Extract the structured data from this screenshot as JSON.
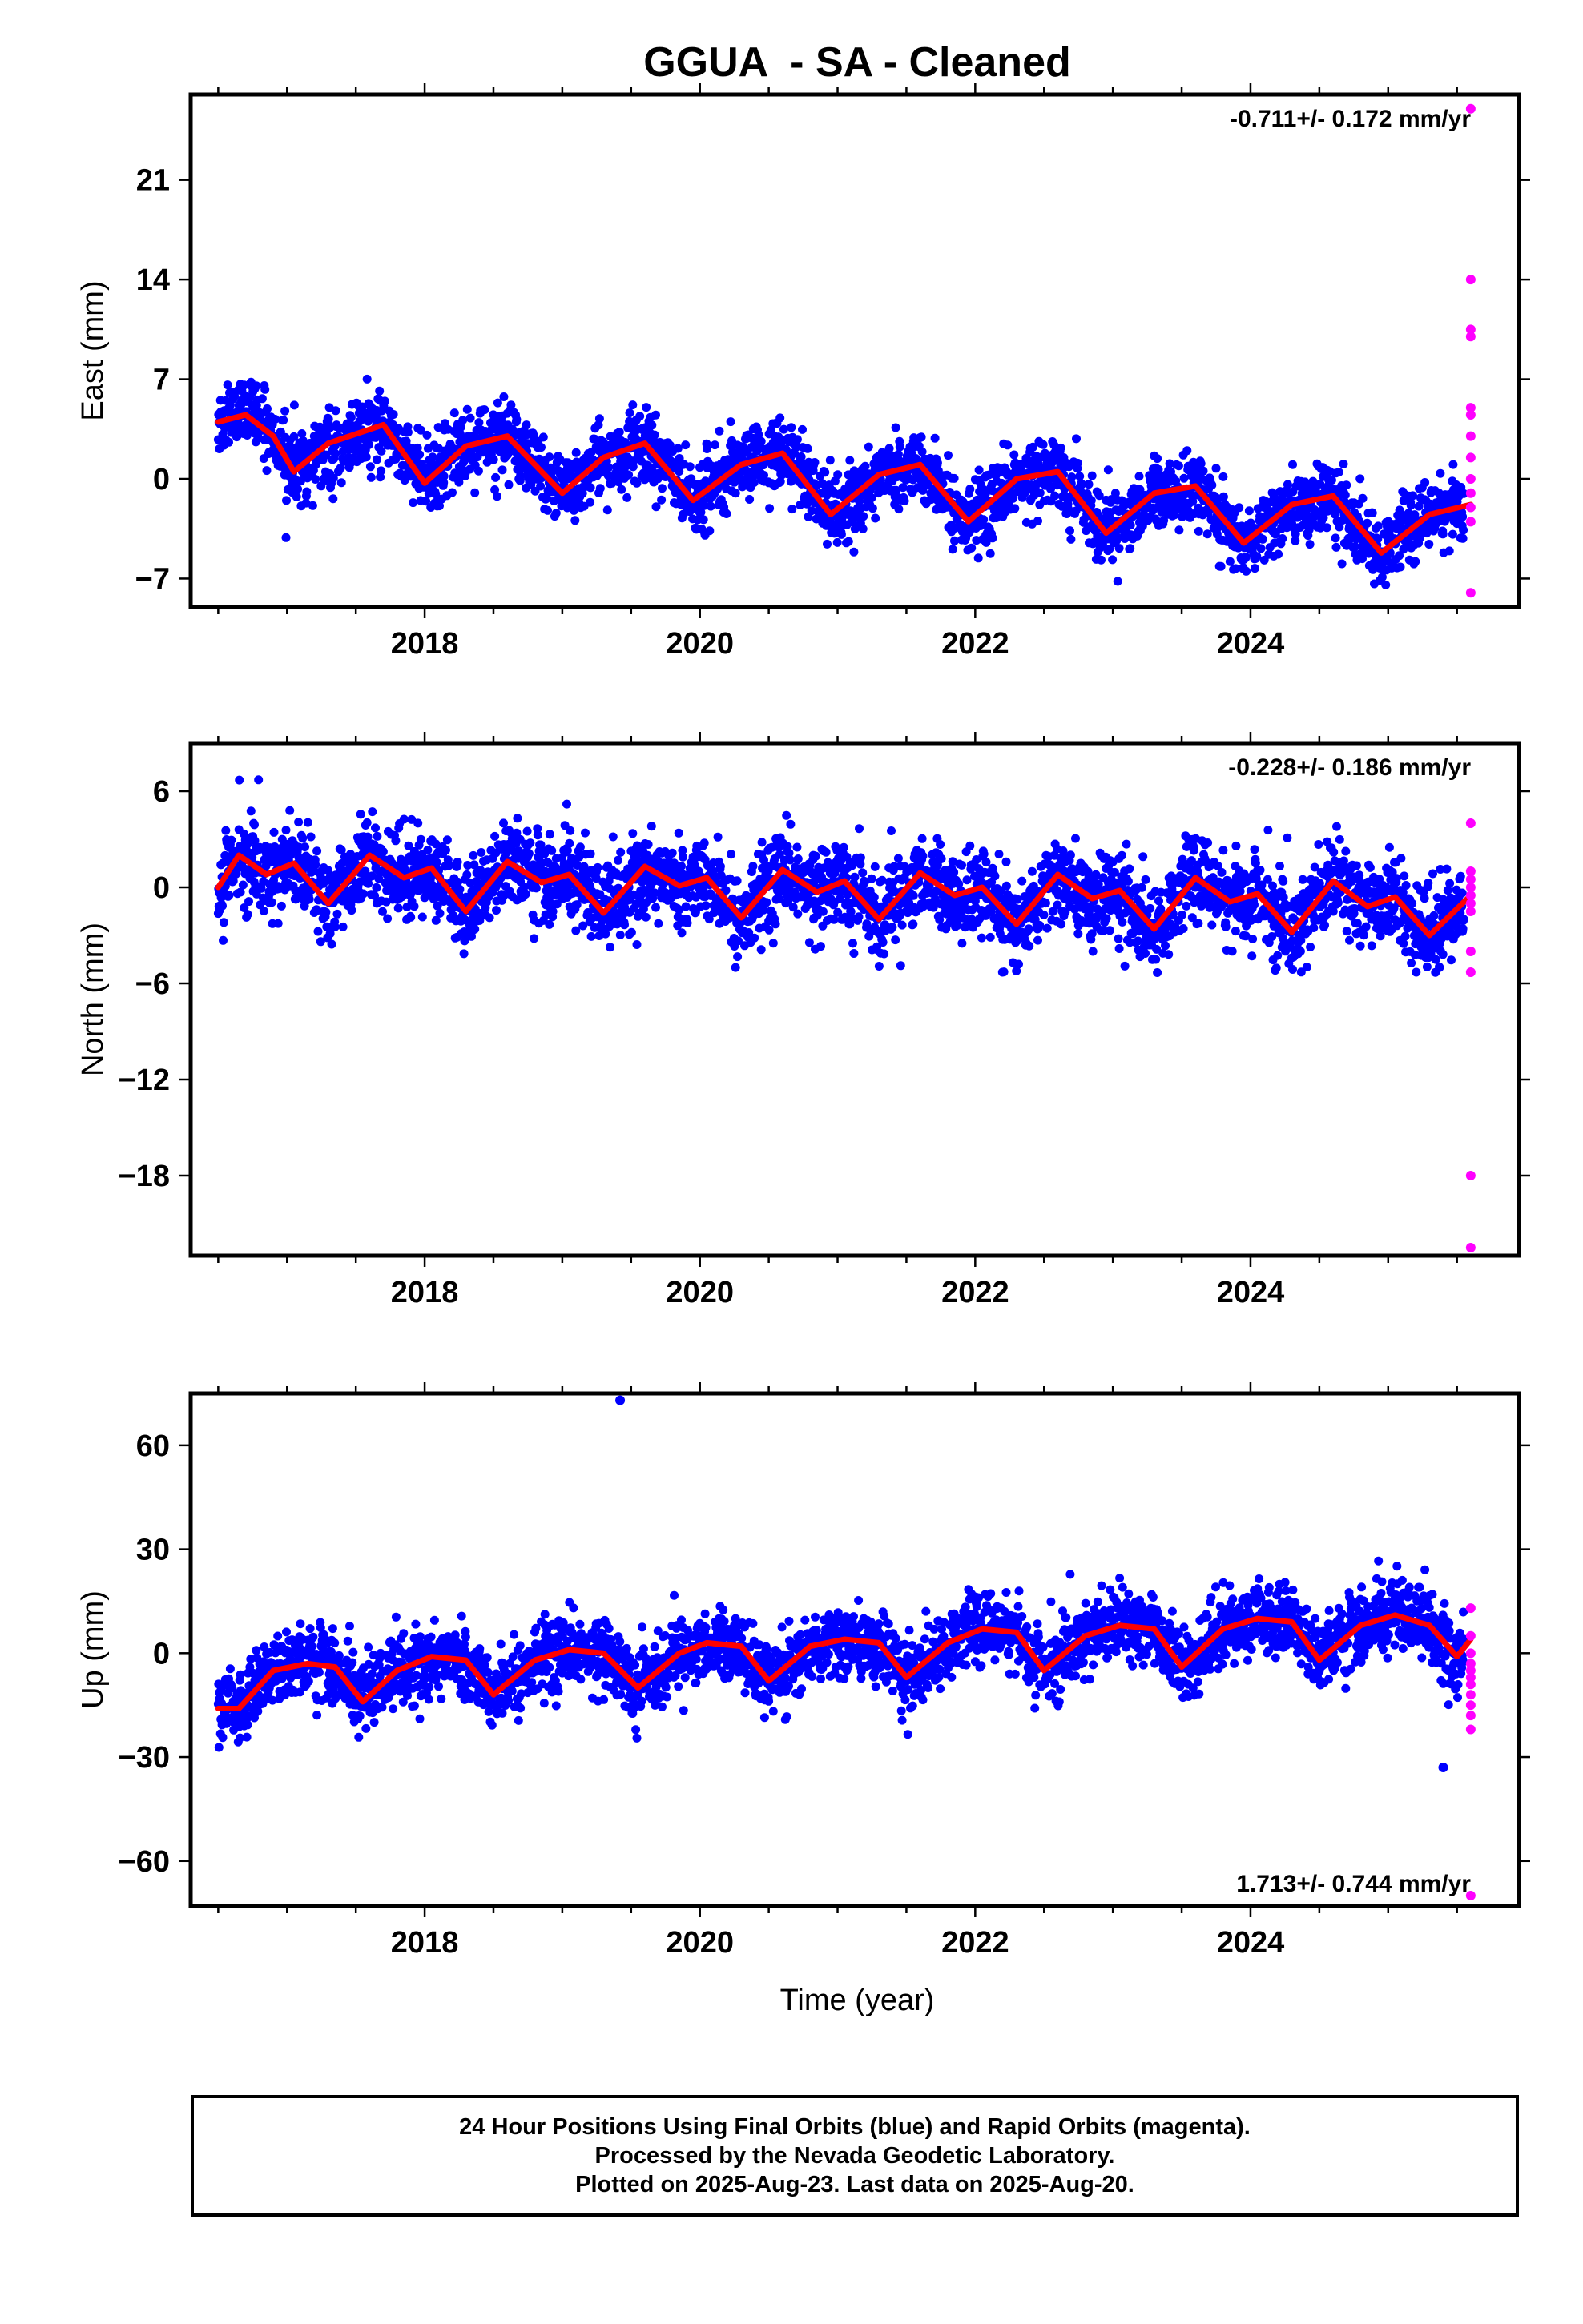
{
  "title": "GGUA  - SA - Cleaned",
  "colors": {
    "final": "#0000ff",
    "rapid": "#ff00ff",
    "model": "#ff0000",
    "frame": "#000000"
  },
  "xlabel": "Time (year)",
  "footer": {
    "line1": "24 Hour Positions Using Final Orbits (blue) and Rapid Orbits (magenta).",
    "line2": "Processed by the Nevada Geodetic Laboratory.",
    "line3": "Plotted on 2025-Aug-23. Last data on 2025-Aug-20."
  },
  "chart_data": [
    {
      "type": "scatter",
      "name": "east",
      "ylabel": "East (mm)",
      "xlim": [
        2016.3,
        2025.95
      ],
      "ylim": [
        -9,
        27
      ],
      "xticks": [
        2018,
        2020,
        2022,
        2024
      ],
      "yticks": [
        -7,
        0,
        7,
        14,
        21
      ],
      "annotation": "-0.711+/- 0.172 mm/yr",
      "annotation_pos": "top-right",
      "series": [
        {
          "role": "final-orbits",
          "x_range": [
            2016.5,
            2025.55
          ],
          "trend_mm_per_yr": -0.711,
          "trend_sigma": 0.172,
          "scatter_mm": 1.2
        },
        {
          "role": "rapid-orbits",
          "points": [
            [
              2025.6,
              26
            ],
            [
              2025.6,
              14
            ],
            [
              2025.6,
              10.5
            ],
            [
              2025.6,
              10
            ],
            [
              2025.6,
              5
            ],
            [
              2025.6,
              4.5
            ],
            [
              2025.6,
              3
            ],
            [
              2025.6,
              1.5
            ],
            [
              2025.6,
              0
            ],
            [
              2025.6,
              -1
            ],
            [
              2025.6,
              -2
            ],
            [
              2025.6,
              -3
            ],
            [
              2025.6,
              -8
            ]
          ]
        },
        {
          "role": "model",
          "points": [
            [
              2016.5,
              4
            ],
            [
              2016.7,
              4.5
            ],
            [
              2016.9,
              3
            ],
            [
              2017.05,
              0.5
            ],
            [
              2017.3,
              2.5
            ],
            [
              2017.7,
              3.8
            ],
            [
              2018.0,
              -0.3
            ],
            [
              2018.3,
              2.3
            ],
            [
              2018.6,
              3.0
            ],
            [
              2019.0,
              -1.0
            ],
            [
              2019.3,
              1.5
            ],
            [
              2019.6,
              2.5
            ],
            [
              2019.95,
              -1.5
            ],
            [
              2020.3,
              1.0
            ],
            [
              2020.6,
              1.8
            ],
            [
              2020.95,
              -2.5
            ],
            [
              2021.3,
              0.3
            ],
            [
              2021.6,
              1.0
            ],
            [
              2021.95,
              -3.0
            ],
            [
              2022.3,
              0.0
            ],
            [
              2022.6,
              0.5
            ],
            [
              2022.95,
              -3.8
            ],
            [
              2023.3,
              -1.0
            ],
            [
              2023.6,
              -0.5
            ],
            [
              2023.95,
              -4.5
            ],
            [
              2024.3,
              -1.8
            ],
            [
              2024.6,
              -1.2
            ],
            [
              2024.95,
              -5.2
            ],
            [
              2025.3,
              -2.5
            ],
            [
              2025.6,
              -1.8
            ]
          ]
        }
      ]
    },
    {
      "type": "scatter",
      "name": "north",
      "ylabel": "North (mm)",
      "xlim": [
        2016.3,
        2025.95
      ],
      "ylim": [
        -23,
        9
      ],
      "xticks": [
        2018,
        2020,
        2022,
        2024
      ],
      "yticks": [
        -18,
        -12,
        -6,
        0,
        6
      ],
      "annotation": "-0.228+/- 0.186 mm/yr",
      "annotation_pos": "top-right",
      "series": [
        {
          "role": "final-orbits",
          "x_range": [
            2016.5,
            2025.55
          ],
          "trend_mm_per_yr": -0.228,
          "trend_sigma": 0.186,
          "scatter_mm": 1.3
        },
        {
          "role": "rapid-orbits",
          "points": [
            [
              2025.6,
              4
            ],
            [
              2025.6,
              1
            ],
            [
              2025.6,
              0.5
            ],
            [
              2025.6,
              0
            ],
            [
              2025.6,
              -0.5
            ],
            [
              2025.6,
              -1
            ],
            [
              2025.6,
              -1.5
            ],
            [
              2025.6,
              -4
            ],
            [
              2025.6,
              -5.3
            ],
            [
              2025.6,
              -18
            ],
            [
              2025.6,
              -22.5
            ]
          ]
        },
        {
          "role": "model",
          "points": [
            [
              2016.5,
              0
            ],
            [
              2016.65,
              2.0
            ],
            [
              2016.85,
              0.8
            ],
            [
              2017.05,
              1.5
            ],
            [
              2017.3,
              -1.0
            ],
            [
              2017.6,
              2.0
            ],
            [
              2017.85,
              0.6
            ],
            [
              2018.05,
              1.2
            ],
            [
              2018.3,
              -1.5
            ],
            [
              2018.6,
              1.6
            ],
            [
              2018.85,
              0.3
            ],
            [
              2019.05,
              0.8
            ],
            [
              2019.3,
              -1.6
            ],
            [
              2019.6,
              1.3
            ],
            [
              2019.85,
              0.1
            ],
            [
              2020.05,
              0.6
            ],
            [
              2020.3,
              -1.9
            ],
            [
              2020.6,
              1.1
            ],
            [
              2020.85,
              -0.3
            ],
            [
              2021.05,
              0.4
            ],
            [
              2021.3,
              -2.0
            ],
            [
              2021.6,
              0.9
            ],
            [
              2021.85,
              -0.5
            ],
            [
              2022.05,
              0.0
            ],
            [
              2022.3,
              -2.3
            ],
            [
              2022.6,
              0.8
            ],
            [
              2022.85,
              -0.7
            ],
            [
              2023.05,
              -0.2
            ],
            [
              2023.3,
              -2.6
            ],
            [
              2023.6,
              0.6
            ],
            [
              2023.85,
              -0.9
            ],
            [
              2024.05,
              -0.4
            ],
            [
              2024.3,
              -2.8
            ],
            [
              2024.6,
              0.4
            ],
            [
              2024.85,
              -1.2
            ],
            [
              2025.05,
              -0.6
            ],
            [
              2025.3,
              -3.0
            ],
            [
              2025.6,
              -0.5
            ]
          ]
        }
      ]
    },
    {
      "type": "scatter",
      "name": "up",
      "ylabel": "Up (mm)",
      "xlim": [
        2016.3,
        2025.95
      ],
      "ylim": [
        -73,
        75
      ],
      "xticks": [
        2018,
        2020,
        2022,
        2024
      ],
      "yticks": [
        -60,
        -30,
        0,
        30,
        60
      ],
      "annotation": "1.713+/- 0.744 mm/yr",
      "annotation_pos": "bottom-right",
      "series": [
        {
          "role": "final-orbits",
          "x_range": [
            2016.5,
            2025.55
          ],
          "trend_mm_per_yr": 1.713,
          "trend_sigma": 0.744,
          "scatter_mm": 5.0,
          "outliers": [
            [
              2019.42,
              73
            ],
            [
              2025.4,
              -33
            ]
          ]
        },
        {
          "role": "rapid-orbits",
          "points": [
            [
              2025.6,
              13
            ],
            [
              2025.6,
              5
            ],
            [
              2025.6,
              0
            ],
            [
              2025.6,
              -3
            ],
            [
              2025.6,
              -5
            ],
            [
              2025.6,
              -7
            ],
            [
              2025.6,
              -9
            ],
            [
              2025.6,
              -12
            ],
            [
              2025.6,
              -15
            ],
            [
              2025.6,
              -18
            ],
            [
              2025.6,
              -22
            ],
            [
              2025.6,
              -70
            ]
          ]
        },
        {
          "role": "model",
          "points": [
            [
              2016.5,
              -16
            ],
            [
              2016.65,
              -16
            ],
            [
              2016.9,
              -5
            ],
            [
              2017.15,
              -3
            ],
            [
              2017.35,
              -4
            ],
            [
              2017.55,
              -14
            ],
            [
              2017.8,
              -5
            ],
            [
              2018.05,
              -1
            ],
            [
              2018.3,
              -2
            ],
            [
              2018.5,
              -12
            ],
            [
              2018.8,
              -2
            ],
            [
              2019.05,
              1
            ],
            [
              2019.3,
              0
            ],
            [
              2019.55,
              -10
            ],
            [
              2019.85,
              0
            ],
            [
              2020.05,
              3
            ],
            [
              2020.3,
              2
            ],
            [
              2020.5,
              -8
            ],
            [
              2020.8,
              2
            ],
            [
              2021.05,
              4
            ],
            [
              2021.3,
              3
            ],
            [
              2021.5,
              -7
            ],
            [
              2021.8,
              3
            ],
            [
              2022.05,
              7
            ],
            [
              2022.3,
              6
            ],
            [
              2022.5,
              -5
            ],
            [
              2022.8,
              5
            ],
            [
              2023.05,
              8
            ],
            [
              2023.3,
              7
            ],
            [
              2023.5,
              -4
            ],
            [
              2023.8,
              7
            ],
            [
              2024.05,
              10
            ],
            [
              2024.3,
              9
            ],
            [
              2024.5,
              -2
            ],
            [
              2024.8,
              8
            ],
            [
              2025.05,
              11
            ],
            [
              2025.3,
              8
            ],
            [
              2025.5,
              -1
            ],
            [
              2025.6,
              4
            ]
          ]
        }
      ]
    }
  ]
}
